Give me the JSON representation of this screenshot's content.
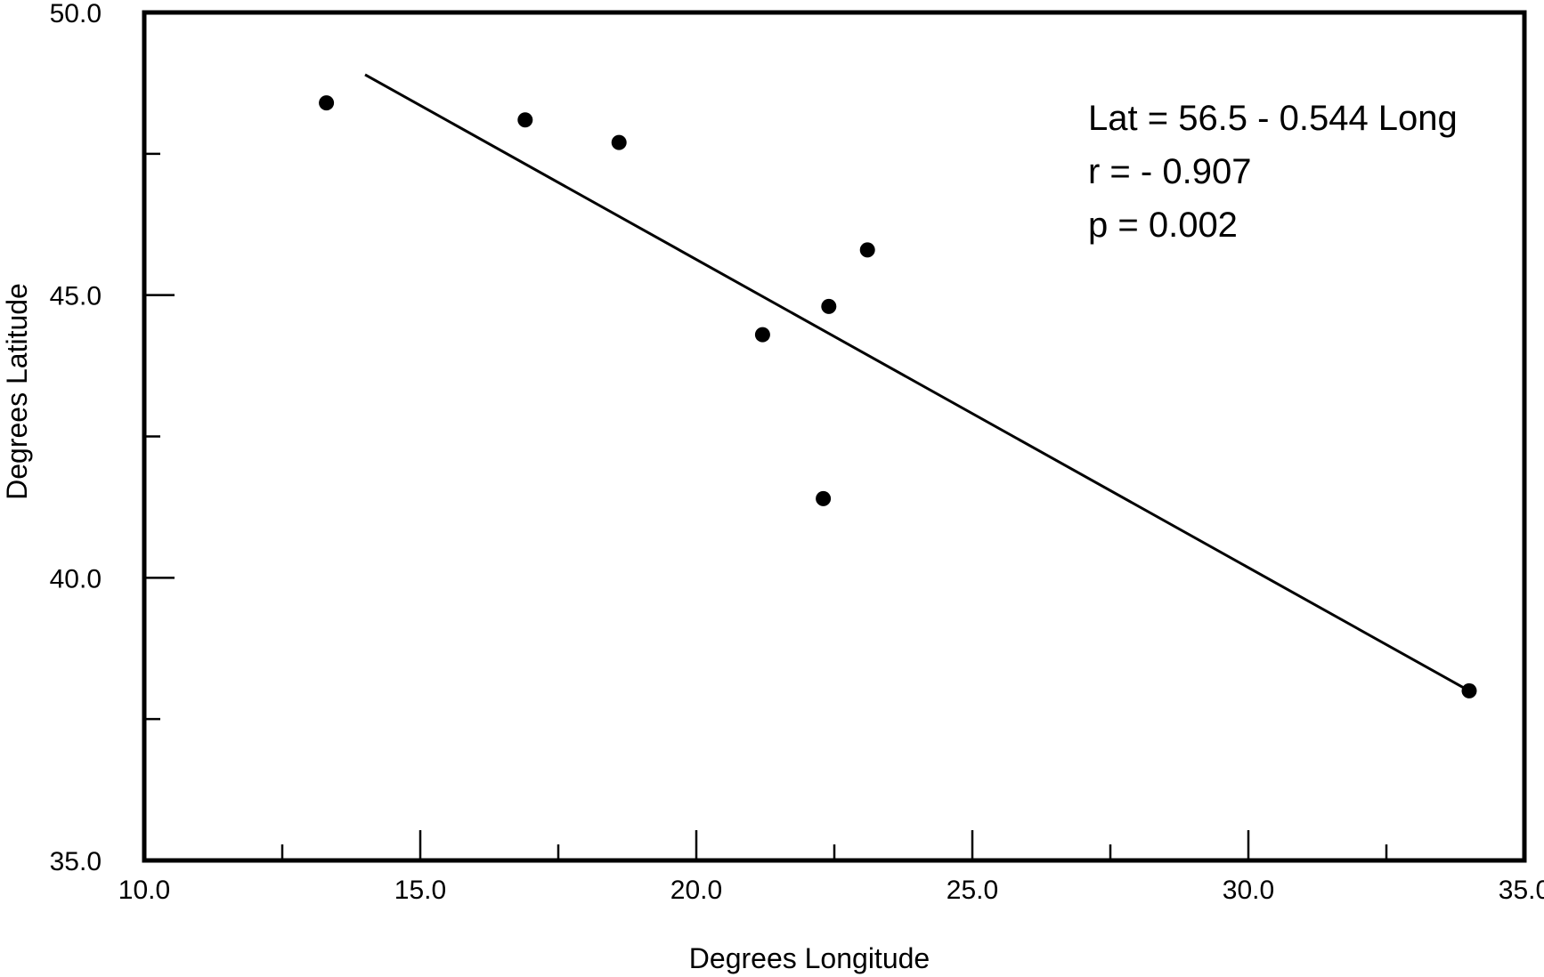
{
  "chart_data": {
    "type": "scatter",
    "title": "",
    "xlabel": "Degrees Longitude",
    "ylabel": "Degrees Latitude",
    "xlim": [
      10.0,
      35.0
    ],
    "ylim": [
      35.0,
      50.0
    ],
    "x_ticks": [
      "10.0",
      "15.0",
      "20.0",
      "25.0",
      "30.0",
      "35.0"
    ],
    "y_ticks": [
      "35.0",
      "40.0",
      "45.0",
      "50.0"
    ],
    "grid": false,
    "series": [
      {
        "points": [
          {
            "x": 13.3,
            "y": 48.4
          },
          {
            "x": 16.9,
            "y": 48.1
          },
          {
            "x": 18.6,
            "y": 47.7
          },
          {
            "x": 23.1,
            "y": 45.8
          },
          {
            "x": 22.4,
            "y": 44.8
          },
          {
            "x": 21.2,
            "y": 44.3
          },
          {
            "x": 22.3,
            "y": 41.4
          },
          {
            "x": 34.0,
            "y": 38.0
          }
        ]
      }
    ],
    "regression": {
      "x_start": 14.0,
      "x_end": 34.0,
      "y_start": 48.9,
      "y_end": 38.0
    },
    "annotations": [
      "Lat = 56.5 - 0.544 Long",
      "r = - 0.907",
      "p  = 0.002"
    ]
  }
}
